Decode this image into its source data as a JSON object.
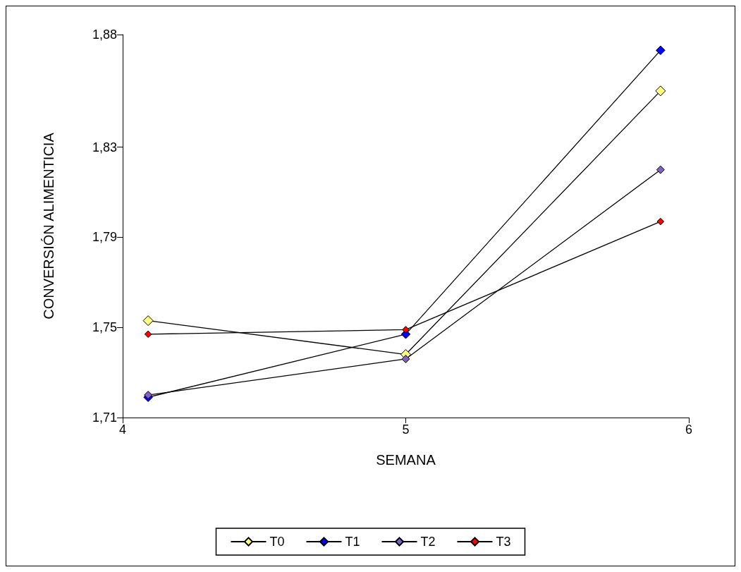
{
  "chart_data": {
    "type": "line",
    "xlabel": "SEMANA",
    "ylabel": "CONVERSIÓN ALIMENTICIA",
    "x": [
      4.09,
      5,
      5.9
    ],
    "series": [
      {
        "name": "T0",
        "color": "#ffff80",
        "values": [
          1.753,
          1.738,
          1.855
        ]
      },
      {
        "name": "T1",
        "color": "#0000ff",
        "values": [
          1.719,
          1.747,
          1.873
        ]
      },
      {
        "name": "T2",
        "color": "#8060c0",
        "values": [
          1.72,
          1.736,
          1.82
        ]
      },
      {
        "name": "T3",
        "color": "#ff0000",
        "values": [
          1.747,
          1.749,
          1.797
        ]
      }
    ],
    "xlim": [
      4,
      6
    ],
    "xticks": [
      4,
      5,
      6
    ],
    "ylim": [
      1.71,
      1.88
    ],
    "yticks": [
      {
        "value": 1.71,
        "label": "1,71"
      },
      {
        "value": 1.75,
        "label": "1,75"
      },
      {
        "value": 1.79,
        "label": "1,79"
      },
      {
        "value": 1.83,
        "label": "1,83"
      },
      {
        "value": 1.88,
        "label": "1,88"
      }
    ],
    "grid": false,
    "legend": "bottom",
    "marker": "diamond",
    "line_style": "solid"
  }
}
